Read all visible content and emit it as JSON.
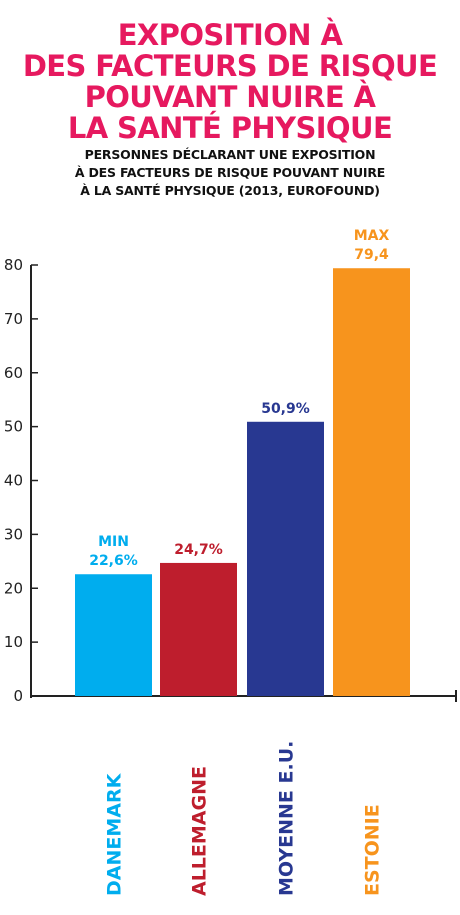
{
  "title": {
    "lines": [
      "EXPOSITION À",
      "DES FACTEURS DE RISQUE",
      "POUVANT NUIRE À",
      "LA SANTÉ PHYSIQUE"
    ]
  },
  "subtitle": {
    "lines": [
      "PERSONNES DÉCLARANT UNE EXPOSITION",
      "À DES FACTEURS DE RISQUE POUVANT NUIRE",
      "À LA SANTÉ PHYSIQUE (2013, EUROFOUND)"
    ]
  },
  "colors": {
    "title": "#e6195f",
    "text": "#111111",
    "axis": "#222222"
  },
  "chart_data": {
    "type": "bar",
    "title": "",
    "xlabel": "",
    "ylabel": "",
    "ylim": [
      0,
      80
    ],
    "yticks": [
      "0",
      "10",
      "20",
      "30",
      "40",
      "50",
      "60",
      "70",
      "80"
    ],
    "grid": false,
    "legend": "none",
    "categories": [
      "DANEMARK",
      "ALLEMAGNE",
      "MOYENNE E.U.",
      "ESTONIE"
    ],
    "values": [
      22.6,
      24.7,
      50.9,
      79.4
    ],
    "colors": [
      "#00adee",
      "#be1e2d",
      "#283891",
      "#f7941d"
    ],
    "value_labels": [
      [
        "MIN",
        "22,6%"
      ],
      [
        "24,7%"
      ],
      [
        "50,9%"
      ],
      [
        "MAX",
        "79,4"
      ]
    ]
  }
}
